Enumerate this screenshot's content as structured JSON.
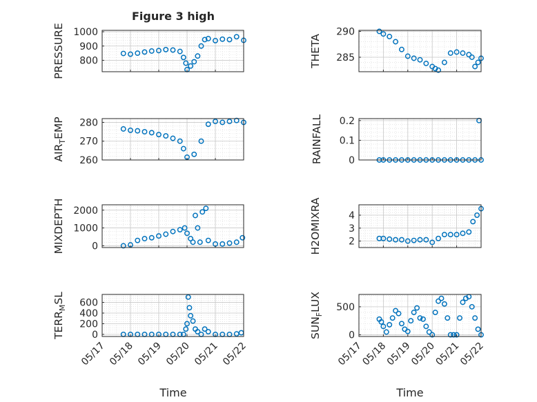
{
  "figure": {
    "title": "Figure 3 high",
    "xlabel": "Time",
    "colors": {
      "marker": "#0072BD",
      "axis": "#262626",
      "grid": "#c8c8c8",
      "background": "#ffffff"
    }
  },
  "chart_data": [
    {
      "type": "scatter",
      "id": "pressure",
      "title": "Figure 3 high",
      "ylabel": {
        "main": "PRESSURE",
        "sub": "",
        "rest": ""
      },
      "xlim": [
        "05/17",
        "05/22"
      ],
      "xticks": [
        "05/17",
        "05/18",
        "05/19",
        "05/20",
        "05/21",
        "05/22"
      ],
      "ylim": [
        720,
        1010
      ],
      "yticks": [
        800,
        900,
        1000
      ],
      "grid": "on",
      "minor_grid": "on",
      "x": [
        "05/17 18:00",
        "05/18 00:00",
        "05/18 06:00",
        "05/18 12:00",
        "05/18 18:00",
        "05/19 00:00",
        "05/19 06:00",
        "05/19 12:00",
        "05/19 18:00",
        "05/19 21:00",
        "05/19 23:00",
        "05/20 00:00",
        "05/20 03:00",
        "05/20 06:00",
        "05/20 09:00",
        "05/20 12:00",
        "05/20 15:00",
        "05/20 18:00",
        "05/21 00:00",
        "05/21 06:00",
        "05/21 12:00",
        "05/21 18:00",
        "05/22 00:00"
      ],
      "y": [
        848,
        843,
        850,
        858,
        865,
        868,
        875,
        872,
        862,
        820,
        780,
        735,
        760,
        790,
        830,
        900,
        945,
        952,
        938,
        948,
        945,
        965,
        940
      ]
    },
    {
      "type": "scatter",
      "id": "theta",
      "ylabel": {
        "main": "THETA",
        "sub": "",
        "rest": ""
      },
      "xlim": [
        "05/17",
        "05/22"
      ],
      "xticks": [
        "05/17",
        "05/18",
        "05/19",
        "05/20",
        "05/21",
        "05/22"
      ],
      "ylim": [
        282.2,
        290.2
      ],
      "yticks": [
        285,
        290
      ],
      "grid": "on",
      "minor_grid": "on",
      "x": [
        "05/17 20:00",
        "05/18 00:00",
        "05/18 06:00",
        "05/18 12:00",
        "05/18 18:00",
        "05/19 00:00",
        "05/19 06:00",
        "05/19 12:00",
        "05/19 18:00",
        "05/20 00:00",
        "05/20 03:00",
        "05/20 06:00",
        "05/20 12:00",
        "05/20 18:00",
        "05/21 00:00",
        "05/21 06:00",
        "05/21 12:00",
        "05/21 15:00",
        "05/21 18:00",
        "05/21 21:00",
        "05/22 00:00"
      ],
      "y": [
        290.0,
        289.5,
        289.0,
        288.0,
        286.5,
        285.2,
        284.8,
        284.5,
        283.8,
        283.2,
        282.8,
        282.5,
        284.0,
        285.8,
        286.0,
        285.8,
        285.5,
        285.0,
        283.2,
        284.0,
        284.8
      ]
    },
    {
      "type": "scatter",
      "id": "air_temp",
      "ylabel": {
        "main": "AIR",
        "sub": "T",
        "rest": "EMP"
      },
      "xlim": [
        "05/17",
        "05/22"
      ],
      "xticks": [
        "05/17",
        "05/18",
        "05/19",
        "05/20",
        "05/21",
        "05/22"
      ],
      "ylim": [
        260,
        282
      ],
      "yticks": [
        260,
        270,
        280
      ],
      "grid": "on",
      "minor_grid": "on",
      "x": [
        "05/17 18:00",
        "05/18 00:00",
        "05/18 06:00",
        "05/18 12:00",
        "05/18 18:00",
        "05/19 00:00",
        "05/19 06:00",
        "05/19 12:00",
        "05/19 18:00",
        "05/19 21:00",
        "05/20 00:00",
        "05/20 06:00",
        "05/20 12:00",
        "05/20 18:00",
        "05/21 00:00",
        "05/21 06:00",
        "05/21 12:00",
        "05/21 18:00",
        "05/22 00:00"
      ],
      "y": [
        276.5,
        275.8,
        275.5,
        275.0,
        274.5,
        273.5,
        272.8,
        271.5,
        270.0,
        266.0,
        261.5,
        263.0,
        270.0,
        279.0,
        280.5,
        280.0,
        280.5,
        281.0,
        280.0
      ]
    },
    {
      "type": "scatter",
      "id": "rainfall",
      "ylabel": {
        "main": "RAINFALL",
        "sub": "",
        "rest": ""
      },
      "xlim": [
        "05/17",
        "05/22"
      ],
      "xticks": [
        "05/17",
        "05/18",
        "05/19",
        "05/20",
        "05/21",
        "05/22"
      ],
      "ylim": [
        0,
        0.21
      ],
      "yticks": [
        0,
        0.1,
        0.2
      ],
      "grid": "on",
      "minor_grid": "on",
      "x": [
        "05/17 20:00",
        "05/18 00:00",
        "05/18 06:00",
        "05/18 12:00",
        "05/18 18:00",
        "05/19 00:00",
        "05/19 06:00",
        "05/19 12:00",
        "05/19 18:00",
        "05/20 00:00",
        "05/20 06:00",
        "05/20 12:00",
        "05/20 18:00",
        "05/21 00:00",
        "05/21 06:00",
        "05/21 12:00",
        "05/21 18:00",
        "05/21 22:00",
        "05/22 00:00"
      ],
      "y": [
        0,
        0,
        0,
        0,
        0,
        0,
        0,
        0,
        0,
        0,
        0,
        0,
        0,
        0,
        0,
        0,
        0,
        0.2,
        0
      ]
    },
    {
      "type": "scatter",
      "id": "mixdepth",
      "ylabel": {
        "main": "MIXDEPTH",
        "sub": "",
        "rest": ""
      },
      "xlim": [
        "05/17",
        "05/22"
      ],
      "xticks": [
        "05/17",
        "05/18",
        "05/19",
        "05/20",
        "05/21",
        "05/22"
      ],
      "ylim": [
        -100,
        2300
      ],
      "yticks": [
        0,
        1000,
        2000
      ],
      "grid": "on",
      "minor_grid": "on",
      "x": [
        "05/17 18:00",
        "05/18 00:00",
        "05/18 06:00",
        "05/18 12:00",
        "05/18 18:00",
        "05/19 00:00",
        "05/19 06:00",
        "05/19 12:00",
        "05/19 18:00",
        "05/19 22:00",
        "05/20 00:00",
        "05/20 03:00",
        "05/20 05:00",
        "05/20 07:00",
        "05/20 09:00",
        "05/20 11:00",
        "05/20 13:00",
        "05/20 16:00",
        "05/20 18:00",
        "05/21 00:00",
        "05/21 06:00",
        "05/21 12:00",
        "05/21 18:00",
        "05/21 23:00"
      ],
      "y": [
        0,
        50,
        300,
        400,
        450,
        550,
        650,
        800,
        900,
        1000,
        700,
        400,
        200,
        1700,
        1000,
        200,
        1900,
        2100,
        300,
        100,
        100,
        150,
        200,
        450
      ]
    },
    {
      "type": "scatter",
      "id": "h2omixra",
      "ylabel": {
        "main": "H2OMIXRA",
        "sub": "",
        "rest": ""
      },
      "xlim": [
        "05/17",
        "05/22"
      ],
      "xticks": [
        "05/17",
        "05/18",
        "05/19",
        "05/20",
        "05/21",
        "05/22"
      ],
      "ylim": [
        1.5,
        4.8
      ],
      "yticks": [
        2,
        3,
        4
      ],
      "grid": "on",
      "minor_grid": "on",
      "x": [
        "05/17 20:00",
        "05/18 00:00",
        "05/18 06:00",
        "05/18 12:00",
        "05/18 18:00",
        "05/19 00:00",
        "05/19 06:00",
        "05/19 12:00",
        "05/19 18:00",
        "05/20 00:00",
        "05/20 06:00",
        "05/20 12:00",
        "05/20 18:00",
        "05/21 00:00",
        "05/21 06:00",
        "05/21 12:00",
        "05/21 16:00",
        "05/21 20:00",
        "05/22 00:00"
      ],
      "y": [
        2.2,
        2.2,
        2.15,
        2.1,
        2.1,
        2.0,
        2.05,
        2.1,
        2.1,
        1.9,
        2.2,
        2.5,
        2.5,
        2.5,
        2.6,
        2.7,
        3.5,
        4.0,
        4.5
      ]
    },
    {
      "type": "scatter",
      "id": "terr_msl",
      "ylabel": {
        "main": "TERR",
        "sub": "M",
        "rest": "SL"
      },
      "xlim": [
        "05/17",
        "05/22"
      ],
      "xticks": [
        "05/17",
        "05/18",
        "05/19",
        "05/20",
        "05/21",
        "05/22"
      ],
      "ylim": [
        -40,
        750
      ],
      "yticks": [
        0,
        200,
        400,
        600
      ],
      "grid": "on",
      "minor_grid": "on",
      "x": [
        "05/17 18:00",
        "05/18 00:00",
        "05/18 06:00",
        "05/18 12:00",
        "05/18 18:00",
        "05/19 00:00",
        "05/19 06:00",
        "05/19 12:00",
        "05/19 18:00",
        "05/19 21:00",
        "05/19 23:00",
        "05/20 00:00",
        "05/20 01:00",
        "05/20 02:00",
        "05/20 03:00",
        "05/20 05:00",
        "05/20 07:00",
        "05/20 09:00",
        "05/20 12:00",
        "05/20 15:00",
        "05/20 18:00",
        "05/21 00:00",
        "05/21 06:00",
        "05/21 12:00",
        "05/21 18:00",
        "05/21 22:00"
      ],
      "y": [
        0,
        0,
        0,
        0,
        0,
        0,
        0,
        0,
        0,
        0,
        100,
        200,
        700,
        500,
        350,
        250,
        100,
        50,
        0,
        100,
        50,
        0,
        0,
        0,
        10,
        30
      ]
    },
    {
      "type": "scatter",
      "id": "sun_flux",
      "ylabel": {
        "main": "SUN",
        "sub": "F",
        "rest": "LUX"
      },
      "xlim": [
        "05/17",
        "05/22"
      ],
      "xticks": [
        "05/17",
        "05/18",
        "05/19",
        "05/20",
        "05/21",
        "05/22"
      ],
      "ylim": [
        -30,
        720
      ],
      "yticks": [
        0,
        500
      ],
      "grid": "on",
      "minor_grid": "on",
      "x": [
        "05/17 20:00",
        "05/17 22:00",
        "05/18 00:00",
        "05/18 03:00",
        "05/18 06:00",
        "05/18 09:00",
        "05/18 12:00",
        "05/18 15:00",
        "05/18 18:00",
        "05/18 21:00",
        "05/19 00:00",
        "05/19 03:00",
        "05/19 06:00",
        "05/19 09:00",
        "05/19 12:00",
        "05/19 15:00",
        "05/19 18:00",
        "05/19 21:00",
        "05/20 00:00",
        "05/20 03:00",
        "05/20 06:00",
        "05/20 09:00",
        "05/20 12:00",
        "05/20 15:00",
        "05/20 18:00",
        "05/20 21:00",
        "05/21 00:00",
        "05/21 03:00",
        "05/21 06:00",
        "05/21 09:00",
        "05/21 12:00",
        "05/21 15:00",
        "05/21 18:00",
        "05/21 21:00",
        "05/22 00:00"
      ],
      "y": [
        280,
        230,
        150,
        50,
        180,
        300,
        430,
        380,
        200,
        100,
        60,
        250,
        400,
        480,
        300,
        280,
        150,
        50,
        0,
        400,
        600,
        650,
        550,
        300,
        0,
        0,
        0,
        300,
        580,
        650,
        680,
        500,
        300,
        100,
        0
      ]
    }
  ]
}
